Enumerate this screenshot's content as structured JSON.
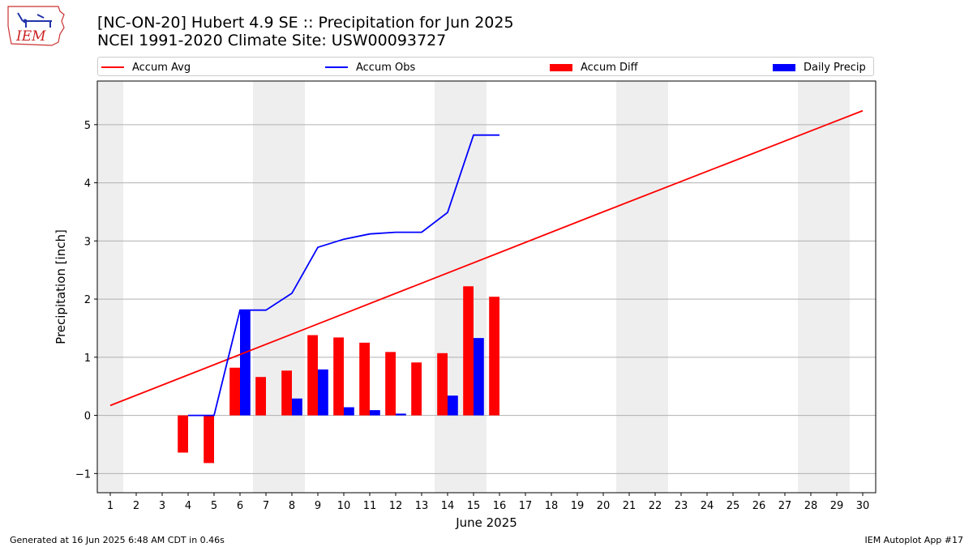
{
  "logo": {
    "text": "IEM",
    "icon": "iem-iowa-logo-icon"
  },
  "title": {
    "line1": "[NC-ON-20] Hubert 4.9 SE :: Precipitation for Jun 2025",
    "line2": "NCEI 1991-2020 Climate Site: USW00093727"
  },
  "footer": {
    "left": "Generated at 16 Jun 2025 6:48 AM CDT in 0.46s",
    "right": "IEM Autoplot App #17"
  },
  "colors": {
    "avg": "#ff0000",
    "obs": "#0000ff",
    "diff": "#ff0000",
    "daily": "#0000ff",
    "weekend": "#eeeeee",
    "grid": "#b0b0b0"
  },
  "chart_data": {
    "type": "bar",
    "xlabel": "June 2025",
    "ylabel": "Precipitation [inch]",
    "xlim": [
      0.5,
      30.5
    ],
    "ylim": [
      -1.33,
      5.75
    ],
    "x_ticks": [
      1,
      2,
      3,
      4,
      5,
      6,
      7,
      8,
      9,
      10,
      11,
      12,
      13,
      14,
      15,
      16,
      17,
      18,
      19,
      20,
      21,
      22,
      23,
      24,
      25,
      26,
      27,
      28,
      29,
      30
    ],
    "y_ticks": [
      -1,
      0,
      1,
      2,
      3,
      4,
      5
    ],
    "y_tick_labels": [
      "−1",
      "0",
      "1",
      "2",
      "3",
      "4",
      "5"
    ],
    "grid": "horizontal",
    "legend_position": "top",
    "weekend_days": [
      1,
      7,
      8,
      14,
      15,
      21,
      22,
      28,
      29
    ],
    "legend": [
      "Accum Avg",
      "Accum Obs",
      "Accum Diff",
      "Daily Precip"
    ],
    "accum_avg": {
      "name": "Accum Avg",
      "x": [
        1,
        20,
        30
      ],
      "y": [
        0.17,
        3.5,
        5.24
      ]
    },
    "accum_obs": {
      "name": "Accum Obs",
      "x": [
        4,
        5,
        6,
        7,
        8,
        9,
        10,
        11,
        12,
        13,
        14,
        15,
        16
      ],
      "y": [
        0.0,
        0.0,
        1.81,
        1.81,
        2.1,
        2.89,
        3.03,
        3.12,
        3.15,
        3.15,
        3.49,
        4.82,
        4.82
      ]
    },
    "accum_diff": {
      "name": "Accum Diff",
      "x": [
        4,
        5,
        6,
        7,
        8,
        9,
        10,
        11,
        12,
        13,
        14,
        15,
        16
      ],
      "y": [
        -0.64,
        -0.82,
        0.82,
        0.66,
        0.77,
        1.38,
        1.34,
        1.25,
        1.09,
        0.91,
        1.07,
        2.22,
        2.04
      ]
    },
    "daily_precip": {
      "name": "Daily Precip",
      "x": [
        6,
        8,
        9,
        10,
        11,
        12,
        14,
        15
      ],
      "y": [
        1.81,
        0.29,
        0.79,
        0.14,
        0.09,
        0.03,
        0.34,
        1.33
      ]
    }
  }
}
